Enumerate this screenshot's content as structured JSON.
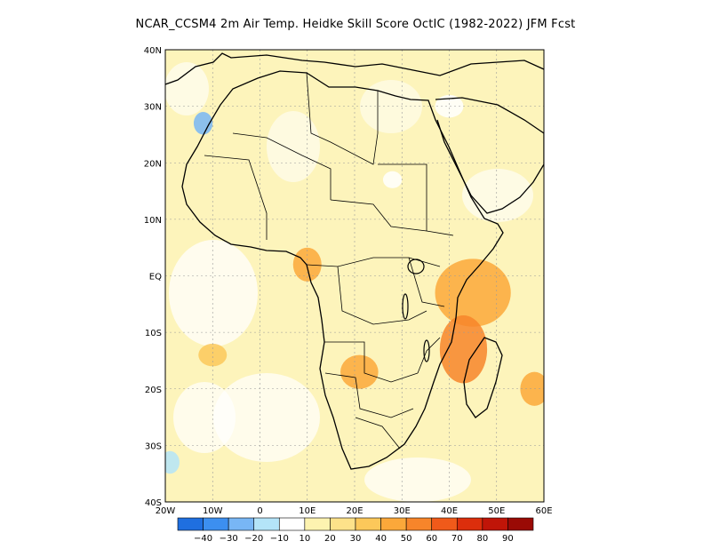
{
  "title": "NCAR_CCSM4  2m Air Temp. Heidke Skill Score OctIC (1982-2022) JFM Fcst",
  "map": {
    "lon_range": [
      -20,
      60
    ],
    "lat_range": [
      -40,
      40
    ],
    "lon_ticks": [
      {
        "value": -20,
        "label": "20W"
      },
      {
        "value": -10,
        "label": "10W"
      },
      {
        "value": 0,
        "label": "0"
      },
      {
        "value": 10,
        "label": "10E"
      },
      {
        "value": 20,
        "label": "20E"
      },
      {
        "value": 30,
        "label": "30E"
      },
      {
        "value": 40,
        "label": "40E"
      },
      {
        "value": 50,
        "label": "50E"
      },
      {
        "value": 60,
        "label": "60E"
      }
    ],
    "lat_ticks": [
      {
        "value": 40,
        "label": "40N"
      },
      {
        "value": 30,
        "label": "30N"
      },
      {
        "value": 20,
        "label": "20N"
      },
      {
        "value": 10,
        "label": "10N"
      },
      {
        "value": 0,
        "label": "EQ"
      },
      {
        "value": -10,
        "label": "10S"
      },
      {
        "value": -20,
        "label": "20S"
      },
      {
        "value": -30,
        "label": "30S"
      },
      {
        "value": -40,
        "label": "40S"
      }
    ],
    "grid": "dotted"
  },
  "colorbar": {
    "colors": [
      "#1f6fe0",
      "#3c8ff0",
      "#78b6f5",
      "#b4e4f8",
      "#ffffff",
      "#fdf3b0",
      "#fde28a",
      "#fcc85a",
      "#fba83a",
      "#f7852a",
      "#f05a1a",
      "#dc2e0c",
      "#c01508",
      "#9a0a05"
    ],
    "labels": [
      "−40",
      "−30",
      "−20",
      "−10",
      "10",
      "20",
      "30",
      "40",
      "50",
      "60",
      "70",
      "80",
      "90"
    ]
  },
  "skill_blobs": [
    {
      "lon": 45,
      "lat": -3,
      "rx": 8,
      "ry": 6,
      "value": 45
    },
    {
      "lon": 43,
      "lat": -13,
      "rx": 5,
      "ry": 6,
      "value": 50
    },
    {
      "lon": 21,
      "lat": -17,
      "rx": 4,
      "ry": 3,
      "value": 40
    },
    {
      "lon": 10,
      "lat": 2,
      "rx": 3,
      "ry": 3,
      "value": 40
    },
    {
      "lon": -10,
      "lat": -14,
      "rx": 3,
      "ry": 2,
      "value": 30
    },
    {
      "lon": 58,
      "lat": -20,
      "rx": 3,
      "ry": 3,
      "value": 40
    },
    {
      "lon": -19,
      "lat": -33,
      "rx": 2,
      "ry": 2,
      "value": -20
    },
    {
      "lon": -12,
      "lat": 27,
      "rx": 2,
      "ry": 2,
      "value": -30
    },
    {
      "lon": 40,
      "lat": 30,
      "rx": 3,
      "ry": 2,
      "value": -10
    },
    {
      "lon": 28,
      "lat": 17,
      "rx": 2,
      "ry": 1.5,
      "value": -10
    }
  ]
}
